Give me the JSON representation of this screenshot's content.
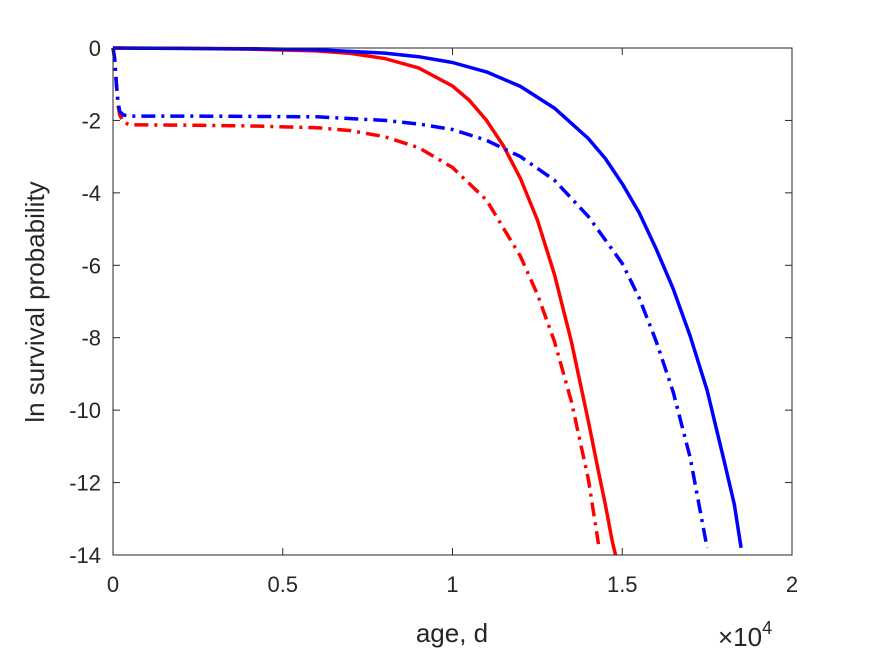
{
  "chart_data": {
    "type": "line",
    "xlabel": "age, d",
    "ylabel": "ln survival probability",
    "x_exponent_label": "×10",
    "x_exponent_power": "4",
    "xlim": [
      0,
      20000
    ],
    "ylim": [
      -14,
      0
    ],
    "xticks": [
      0,
      5000,
      10000,
      15000,
      20000
    ],
    "xtick_labels": [
      "0",
      "0.5",
      "1",
      "1.5",
      "2"
    ],
    "yticks": [
      0,
      -2,
      -4,
      -6,
      -8,
      -10,
      -12,
      -14
    ],
    "ytick_labels": [
      "0",
      "-2",
      "-4",
      "-6",
      "-8",
      "-10",
      "-12",
      "-14"
    ],
    "grid": false,
    "series": [
      {
        "color": "#ff0000",
        "style": "solid",
        "x": [
          0,
          2000,
          4000,
          6000,
          7000,
          8000,
          9000,
          10000,
          10500,
          11000,
          11500,
          12000,
          12500,
          13000,
          13500,
          14000,
          14300,
          14500,
          14700,
          14800
        ],
        "y": [
          0,
          -0.01,
          -0.03,
          -0.08,
          -0.15,
          -0.29,
          -0.55,
          -1.05,
          -1.45,
          -2.0,
          -2.7,
          -3.6,
          -4.75,
          -6.25,
          -8.1,
          -10.3,
          -11.7,
          -12.6,
          -13.6,
          -14.0
        ]
      },
      {
        "color": "#0000ff",
        "style": "solid",
        "x": [
          0,
          2000,
          4000,
          6000,
          8000,
          9000,
          10000,
          11000,
          12000,
          13000,
          14000,
          14500,
          15000,
          15500,
          16000,
          16500,
          17000,
          17500,
          18000,
          18300,
          18500
        ],
        "y": [
          0,
          -0.01,
          -0.02,
          -0.05,
          -0.14,
          -0.24,
          -0.4,
          -0.66,
          -1.06,
          -1.66,
          -2.5,
          -3.05,
          -3.75,
          -4.55,
          -5.55,
          -6.65,
          -7.95,
          -9.45,
          -11.4,
          -12.6,
          -13.8
        ]
      },
      {
        "color": "#ff0000",
        "style": "dashdot",
        "x": [
          0,
          50,
          100,
          150,
          200,
          300,
          500,
          2000,
          4000,
          6000,
          7000,
          8000,
          9000,
          10000,
          11000,
          12000,
          12500,
          13000,
          13500,
          14000,
          14300
        ],
        "y": [
          0,
          -0.3,
          -1.0,
          -1.6,
          -1.85,
          -2.05,
          -2.12,
          -2.13,
          -2.15,
          -2.2,
          -2.28,
          -2.45,
          -2.75,
          -3.3,
          -4.2,
          -5.75,
          -6.8,
          -8.1,
          -9.75,
          -11.9,
          -13.7
        ]
      },
      {
        "color": "#0000ff",
        "style": "dashdot",
        "x": [
          0,
          50,
          100,
          150,
          200,
          300,
          500,
          2000,
          4000,
          6000,
          8000,
          9000,
          10000,
          11000,
          12000,
          13000,
          14000,
          15000,
          15500,
          16000,
          16500,
          17000,
          17500
        ],
        "y": [
          0,
          -0.3,
          -1.0,
          -1.5,
          -1.75,
          -1.85,
          -1.88,
          -1.88,
          -1.89,
          -1.9,
          -2.0,
          -2.1,
          -2.25,
          -2.55,
          -3.0,
          -3.65,
          -4.65,
          -5.95,
          -6.9,
          -8.1,
          -9.5,
          -11.3,
          -13.8
        ]
      }
    ]
  }
}
